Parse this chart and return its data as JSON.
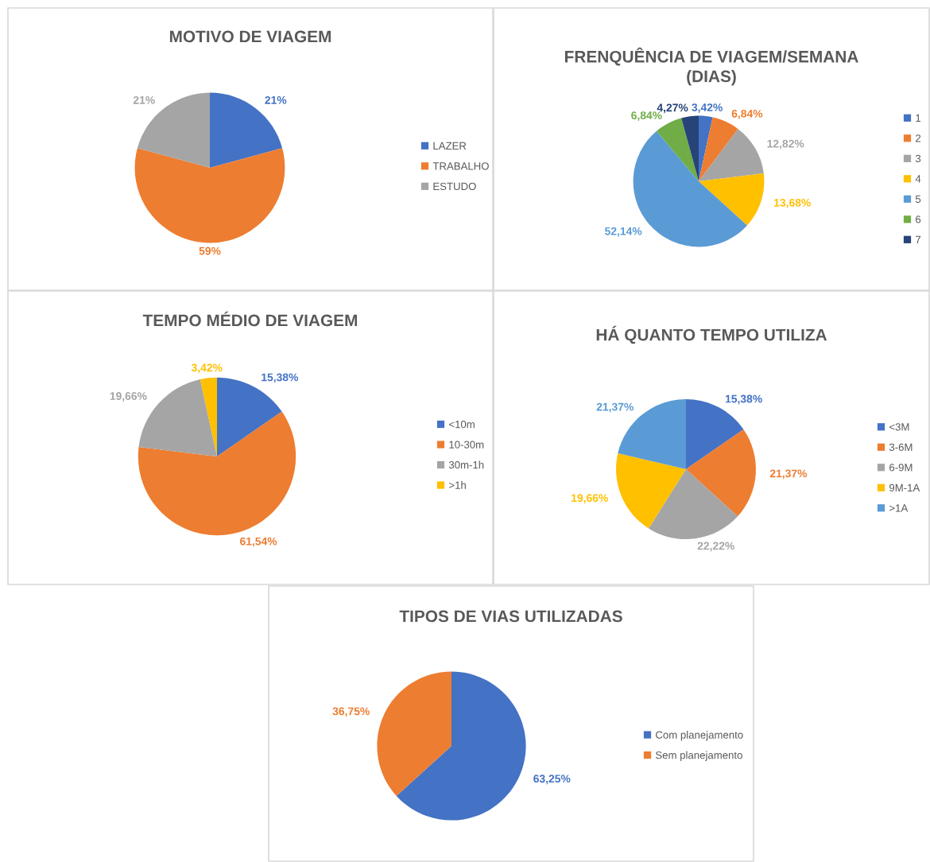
{
  "chart_data": [
    {
      "type": "pie",
      "title": "MOTIVO DE VIAGEM",
      "categories": [
        "LAZER",
        "TRABALHO",
        "ESTUDO"
      ],
      "values": [
        21,
        59,
        21
      ],
      "value_labels": [
        "21%",
        "59%",
        "21%"
      ],
      "colors": [
        "#4472c4",
        "#ed7d31",
        "#a5a5a5"
      ],
      "legend": "right"
    },
    {
      "type": "pie",
      "title": "FRENQUÊNCIA DE VIAGEM/SEMANA\n(DIAS)",
      "categories": [
        "1",
        "2",
        "3",
        "4",
        "5",
        "6",
        "7"
      ],
      "values": [
        3.42,
        6.84,
        12.82,
        13.68,
        52.14,
        6.84,
        4.27
      ],
      "value_labels": [
        "3,42%",
        "6,84%",
        "12,82%",
        "13,68%",
        "52,14%",
        "6,84%",
        "4,27%"
      ],
      "colors": [
        "#4472c4",
        "#ed7d31",
        "#a5a5a5",
        "#ffc000",
        "#5b9bd5",
        "#70ad47",
        "#264478"
      ],
      "legend": "right"
    },
    {
      "type": "pie",
      "title": "TEMPO MÉDIO DE VIAGEM",
      "categories": [
        "<10m",
        "10-30m",
        "30m-1h",
        ">1h"
      ],
      "values": [
        15.38,
        61.54,
        19.66,
        3.42
      ],
      "value_labels": [
        "15,38%",
        "61,54%",
        "19,66%",
        "3,42%"
      ],
      "colors": [
        "#4472c4",
        "#ed7d31",
        "#a5a5a5",
        "#ffc000"
      ],
      "legend": "right"
    },
    {
      "type": "pie",
      "title": "HÁ QUANTO TEMPO UTILIZA",
      "categories": [
        "<3M",
        "3-6M",
        "6-9M",
        "9M-1A",
        ">1A"
      ],
      "values": [
        15.38,
        21.37,
        22.22,
        19.66,
        21.37
      ],
      "value_labels": [
        "15,38%",
        "21,37%",
        "22,22%",
        "19,66%",
        "21,37%"
      ],
      "colors": [
        "#4472c4",
        "#ed7d31",
        "#a5a5a5",
        "#ffc000",
        "#5b9bd5"
      ],
      "legend": "right"
    },
    {
      "type": "pie",
      "title": "TIPOS DE VIAS UTILIZADAS",
      "categories": [
        "Com planejamento",
        "Sem planejamento"
      ],
      "values": [
        63.25,
        36.75
      ],
      "value_labels": [
        "63,25%",
        "36,75%"
      ],
      "colors": [
        "#4472c4",
        "#ed7d31"
      ],
      "legend": "right"
    }
  ]
}
